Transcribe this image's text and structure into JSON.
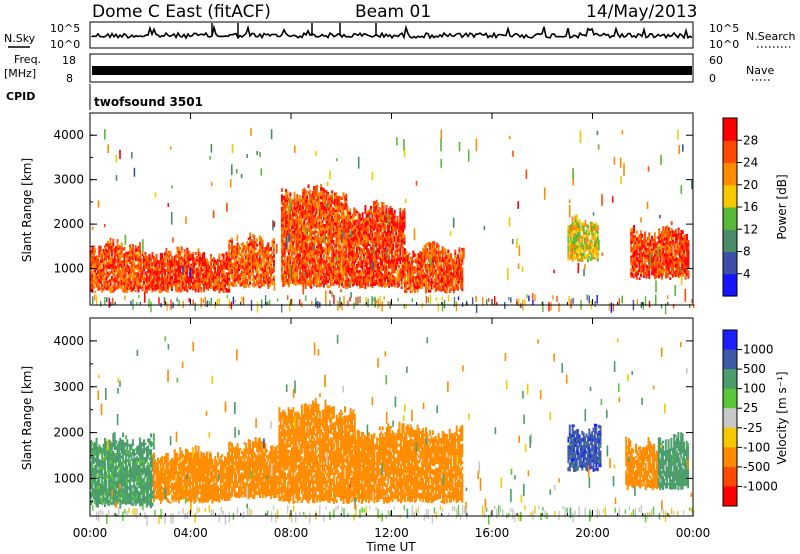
{
  "header": {
    "station": "Dome C East (fitACF)",
    "beam": "Beam 01",
    "date": "14/May/2013"
  },
  "status_panels": {
    "nsky_label": "N.Sky",
    "nsky_ticks": [
      "10^5",
      "10^0"
    ],
    "nsearch_label": "N.Search",
    "nsearch_ticks": [
      "10^5",
      "10^0"
    ],
    "freq_label": "Freq.",
    "freq_unit": "[MHz]",
    "freq_ticks": [
      "18",
      "8"
    ],
    "nave_label": "Nave",
    "nave_ticks": [
      "60",
      "0"
    ],
    "cpid_label": "CPID",
    "cpid_value": "twofsound 3501"
  },
  "colors": {
    "power_scale": [
      "#1414ff",
      "#3c4ea8",
      "#4a8c6a",
      "#58b838",
      "#f5c800",
      "#ff8c00",
      "#ff4a00",
      "#ff0000"
    ],
    "velocity_scale": [
      "#ff0000",
      "#ff4a00",
      "#ff8c00",
      "#f5c800",
      "#c8c8c8",
      "#58c838",
      "#4a9c6a",
      "#3c5aa8",
      "#1e1eff"
    ]
  },
  "chart_data": [
    {
      "type": "heatmap",
      "panel": "power",
      "ylabel": "Slant Range [km]",
      "xlabel": "",
      "x_ticks": [
        "00:00",
        "04:00",
        "08:00",
        "12:00",
        "16:00",
        "20:00",
        "00:00"
      ],
      "y_ticks": [
        "1000",
        "2000",
        "3000",
        "4000"
      ],
      "xlim": [
        0,
        24
      ],
      "ylim": [
        180,
        4500
      ],
      "colorbar_label": "Power [dB]",
      "colorbar_ticks": [
        "4",
        "8",
        "12",
        "16",
        "20",
        "24",
        "28"
      ],
      "zlim": [
        0,
        32
      ],
      "echo_regions": [
        {
          "t0": 0.0,
          "t1": 2.0,
          "r0": 500,
          "r1": 1500,
          "level": 26
        },
        {
          "t0": 2.0,
          "t1": 5.5,
          "r0": 500,
          "r1": 1300,
          "level": 27
        },
        {
          "t0": 5.5,
          "t1": 7.3,
          "r0": 600,
          "r1": 1600,
          "level": 25
        },
        {
          "t0": 7.6,
          "t1": 10.2,
          "r0": 600,
          "r1": 2700,
          "level": 26
        },
        {
          "t0": 10.2,
          "t1": 12.5,
          "r0": 600,
          "r1": 2300,
          "level": 27
        },
        {
          "t0": 12.5,
          "t1": 14.8,
          "r0": 500,
          "r1": 1400,
          "level": 26
        },
        {
          "t0": 19.0,
          "t1": 20.2,
          "r0": 1200,
          "r1": 2000,
          "level": 18
        },
        {
          "t0": 21.5,
          "t1": 23.8,
          "r0": 800,
          "r1": 1800,
          "level": 27
        }
      ],
      "ground_scatter_range": [
        200,
        400
      ]
    },
    {
      "type": "heatmap",
      "panel": "velocity",
      "ylabel": "Slant Range [km]",
      "xlabel": "Time UT",
      "x_ticks": [
        "00:00",
        "04:00",
        "08:00",
        "12:00",
        "16:00",
        "20:00",
        "00:00"
      ],
      "y_ticks": [
        "1000",
        "2000",
        "3000",
        "4000"
      ],
      "xlim": [
        0,
        24
      ],
      "ylim": [
        180,
        4500
      ],
      "colorbar_label": "Velocity [m s⁻¹]",
      "colorbar_ticks": [
        "1000",
        "500",
        "100",
        "25",
        "-25",
        "-100",
        "-500",
        "-1000"
      ],
      "echo_regions": [
        {
          "t0": 0.0,
          "t1": 2.5,
          "r0": 400,
          "r1": 1800,
          "level": 150
        },
        {
          "t0": 2.5,
          "t1": 5.5,
          "r0": 500,
          "r1": 1500,
          "level": -200
        },
        {
          "t0": 5.5,
          "t1": 7.5,
          "r0": 600,
          "r1": 1700,
          "level": -300
        },
        {
          "t0": 7.5,
          "t1": 10.5,
          "r0": 500,
          "r1": 2500,
          "level": -250
        },
        {
          "t0": 10.5,
          "t1": 14.8,
          "r0": 500,
          "r1": 2000,
          "level": -300
        },
        {
          "t0": 19.0,
          "t1": 20.3,
          "r0": 1200,
          "r1": 2000,
          "level": 800
        },
        {
          "t0": 21.3,
          "t1": 22.6,
          "r0": 800,
          "r1": 1700,
          "level": -200
        },
        {
          "t0": 22.6,
          "t1": 23.8,
          "r0": 800,
          "r1": 1800,
          "level": 200
        }
      ]
    }
  ]
}
